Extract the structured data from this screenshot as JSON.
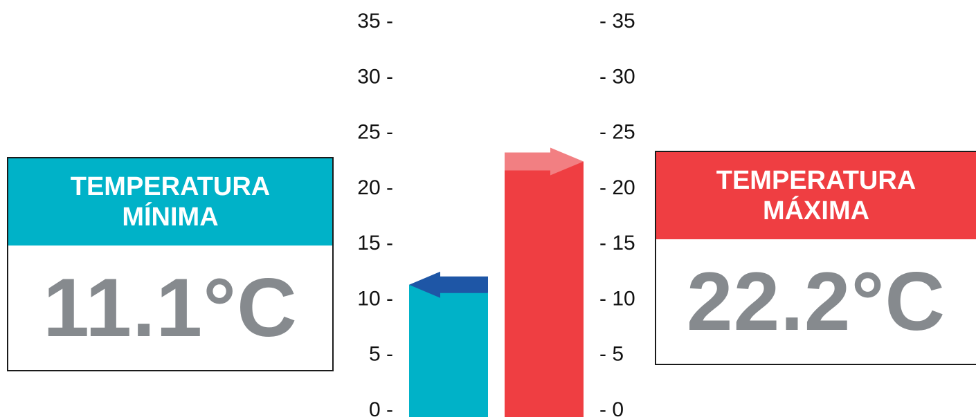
{
  "chart_data": {
    "type": "bar",
    "categories": [
      "TEMPERATURA MÍNIMA",
      "TEMPERATURA MÁXIMA"
    ],
    "values": [
      11.1,
      22.2
    ],
    "ylim": [
      0,
      35
    ],
    "yticks": [
      0,
      5,
      10,
      15,
      20,
      25,
      30,
      35
    ],
    "left_tick_labels": [
      "0 -",
      "5 -",
      "10 -",
      "15 -",
      "20 -",
      "25 -",
      "30 -",
      "35 -"
    ],
    "right_tick_labels": [
      "- 0",
      "- 5",
      "- 10",
      "- 15",
      "- 20",
      "- 25",
      "- 30",
      "- 35"
    ],
    "grid": false,
    "colors": {
      "min_bar": "#00b2c8",
      "max_bar": "#ef3e42",
      "min_arrow": "#1e56a6",
      "max_arrow": "#f27f82"
    }
  },
  "cards": {
    "min": {
      "title_line1": "TEMPERATURA",
      "title_line2": "MÍNIMA",
      "value": "11.1°C",
      "color": "#00b2c8"
    },
    "max": {
      "title_line1": "TEMPERATURA",
      "title_line2": "MÁXIMA",
      "value": "22.2°C",
      "color": "#ef3e42"
    }
  }
}
